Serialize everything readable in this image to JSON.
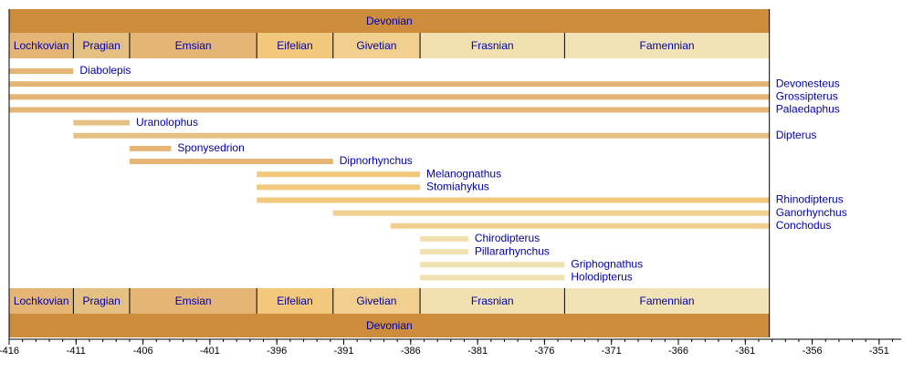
{
  "chart_data": {
    "type": "timeline",
    "period": {
      "name": "Devonian",
      "start": -416,
      "end": -359.2,
      "color": "#cc8c3c"
    },
    "stages": [
      {
        "name": "Lochkovian",
        "start": -416,
        "end": -411.2,
        "color": "#e5b575"
      },
      {
        "name": "Pragian",
        "start": -411.2,
        "end": -407,
        "color": "#e5c083"
      },
      {
        "name": "Emsian",
        "start": -407,
        "end": -397.5,
        "color": "#e5b575"
      },
      {
        "name": "Eifelian",
        "start": -397.5,
        "end": -391.8,
        "color": "#f1c87c"
      },
      {
        "name": "Givetian",
        "start": -391.8,
        "end": -385.3,
        "color": "#f1d08f"
      },
      {
        "name": "Frasnian",
        "start": -385.3,
        "end": -374.5,
        "color": "#f2e1b0"
      },
      {
        "name": "Famennian",
        "start": -374.5,
        "end": -359.2,
        "color": "#f2e3b7"
      }
    ],
    "taxa": [
      {
        "name": "Diabolepis",
        "start": -416,
        "end": -411.2,
        "color": "#e5b575"
      },
      {
        "name": "Devonesteus",
        "start": -416,
        "end": -359.2,
        "color": "#e5b575"
      },
      {
        "name": "Grossipterus",
        "start": -416,
        "end": -359.2,
        "color": "#e5b575"
      },
      {
        "name": "Palaedaphus",
        "start": -416,
        "end": -359.2,
        "color": "#e5b575"
      },
      {
        "name": "Uranolophus",
        "start": -411.2,
        "end": -407,
        "color": "#e5c083"
      },
      {
        "name": "Dipterus",
        "start": -411.2,
        "end": -359.2,
        "color": "#e5c083"
      },
      {
        "name": "Sponysedrion",
        "start": -407,
        "end": -403.9,
        "color": "#e5b575"
      },
      {
        "name": "Dipnorhynchus",
        "start": -407,
        "end": -391.8,
        "color": "#e5b575"
      },
      {
        "name": "Melanognathus",
        "start": -397.5,
        "end": -385.3,
        "color": "#f1c87c"
      },
      {
        "name": "Stomiahykus",
        "start": -397.5,
        "end": -385.3,
        "color": "#f1c87c"
      },
      {
        "name": "Rhinodipterus",
        "start": -397.5,
        "end": -359.2,
        "color": "#f1c87c"
      },
      {
        "name": "Ganorhynchus",
        "start": -391.8,
        "end": -359.2,
        "color": "#f1d08f"
      },
      {
        "name": "Conchodus",
        "start": -387.5,
        "end": -359.2,
        "color": "#f1d08f"
      },
      {
        "name": "Chirodipterus",
        "start": -385.3,
        "end": -381.7,
        "color": "#f2e1b0"
      },
      {
        "name": "Pillararhynchus",
        "start": -385.3,
        "end": -381.7,
        "color": "#f2e1b0"
      },
      {
        "name": "Griphognathus",
        "start": -385.3,
        "end": -374.5,
        "color": "#f2e1b0"
      },
      {
        "name": "Holodipterus",
        "start": -385.3,
        "end": -374.5,
        "color": "#f2e1b0"
      }
    ],
    "xlim": [
      -416,
      -349
    ],
    "x_ticks": [
      -416,
      -411,
      -406,
      -401,
      -396,
      -391,
      -386,
      -381,
      -376,
      -371,
      -366,
      -361,
      -356,
      -351
    ],
    "x_ticklabels": [
      "-416",
      "-411",
      "-406",
      "-401",
      "-396",
      "-391",
      "-386",
      "-381",
      "-376",
      "-371",
      "-366",
      "-361",
      "-356",
      "-351"
    ],
    "minor_tick_step": 1,
    "grid": false,
    "label_color": "#0000aa"
  }
}
